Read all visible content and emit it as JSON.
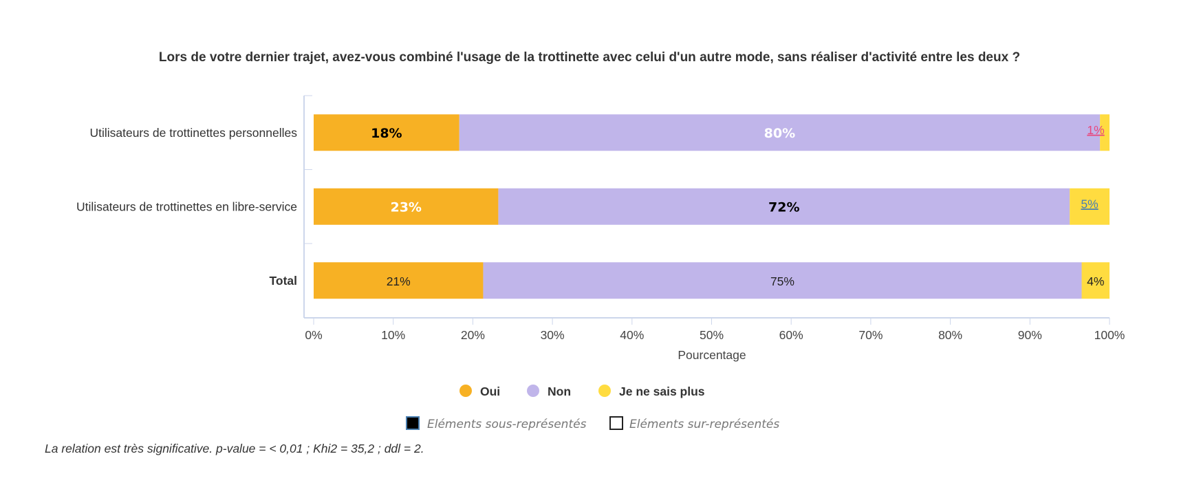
{
  "chart_data": {
    "type": "bar",
    "orientation": "horizontal",
    "stacked": "percent",
    "title": "Lors de votre dernier trajet, avez-vous combiné l'usage de la trottinette avec celui d'un autre mode, sans réaliser d'activité entre les deux ?",
    "xlabel": "Pourcentage",
    "xlim": [
      0,
      100
    ],
    "ticks": [
      "0%",
      "10%",
      "20%",
      "30%",
      "40%",
      "50%",
      "60%",
      "70%",
      "80%",
      "90%",
      "100%"
    ],
    "categories": [
      "Utilisateurs de trottinettes personnelles",
      "Utilisateurs de trottinettes en libre-service",
      "Total"
    ],
    "series": [
      {
        "name": "Oui",
        "color": "#f7b124",
        "values": [
          18.3,
          23.2,
          21.3
        ],
        "labels": [
          "18%",
          "23%",
          "21%"
        ],
        "label_styles": [
          "under",
          "over",
          "normal"
        ]
      },
      {
        "name": "Non",
        "color": "#c0b5ea",
        "values": [
          80.5,
          71.8,
          75.2
        ],
        "labels": [
          "80%",
          "72%",
          "75%"
        ],
        "label_styles": [
          "over",
          "under",
          "normal"
        ]
      },
      {
        "name": "Je ne sais plus",
        "color": "#ffdc40",
        "values": [
          1.2,
          5.0,
          3.5
        ],
        "labels": [
          "1%",
          "5%",
          "4%"
        ],
        "label_styles": [
          "link-pink",
          "link-blue",
          "normal"
        ]
      }
    ],
    "legend_position": "bottom-center",
    "grid": false
  },
  "representation_legend": {
    "under": "Eléments sous-représentés",
    "over": "Eléments sur-représentés"
  },
  "footnote": "La relation est très significative. p-value = < 0,01 ; Khi2 = 35,2 ; ddl = 2.",
  "colors": {
    "link_pink": "#e8467c",
    "link_blue": "#4a7fb0",
    "axis": "#ccd6eb"
  }
}
